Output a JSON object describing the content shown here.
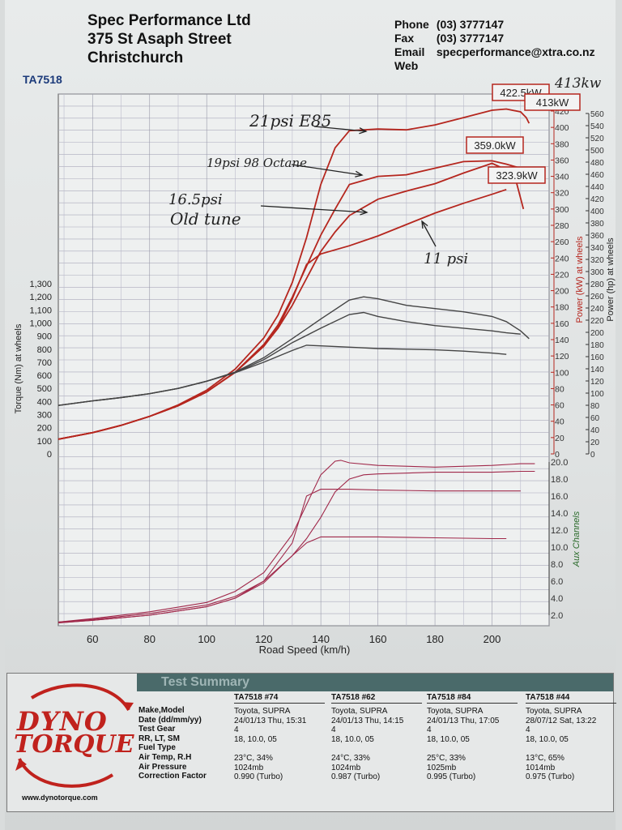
{
  "header": {
    "company_lines": [
      "Spec Performance Ltd",
      "375 St  Asaph Street",
      "Christchurch"
    ],
    "contact": [
      {
        "k": "Phone",
        "v": "(03) 3777147"
      },
      {
        "k": "Fax",
        "v": "(03) 3777147"
      },
      {
        "k": "Email",
        "v": "specperformance@xtra.co.nz"
      },
      {
        "k": "Web",
        "v": ""
      }
    ],
    "run_id": "TA7518"
  },
  "chart_data": [
    {
      "type": "line",
      "title": "",
      "xlabel": "Road Speed (km/h)",
      "xlim": [
        48,
        220
      ],
      "x_ticks": [
        60,
        80,
        100,
        120,
        140,
        160,
        180,
        200
      ],
      "grid": true,
      "axes": {
        "torque": {
          "label": "Torque (Nm) at wheels",
          "side": "left",
          "lim": [
            0,
            1380
          ],
          "ticks": [
            0,
            100,
            200,
            300,
            400,
            500,
            600,
            700,
            800,
            900,
            "1,000",
            "1,100",
            "1,200",
            "1,300"
          ]
        },
        "power_kw": {
          "label": "Power (kW) at wheels",
          "side": "right",
          "lim": [
            0,
            440
          ],
          "ticks": [
            0,
            20,
            40,
            60,
            80,
            100,
            120,
            140,
            160,
            180,
            200,
            220,
            240,
            260,
            280,
            300,
            320,
            340,
            360,
            380,
            400,
            420
          ]
        },
        "power_hp": {
          "label": "Power (hp) at wheels",
          "side": "right-outer",
          "ticks": [
            0,
            20,
            40,
            60,
            80,
            100,
            120,
            140,
            160,
            180,
            200,
            220,
            240,
            260,
            280,
            300,
            320,
            340,
            360,
            380,
            400,
            420,
            440,
            460,
            480,
            500,
            520,
            540,
            560
          ]
        }
      },
      "series": [
        {
          "name": "21psi E85",
          "axis": "power_kw",
          "color": "#b5261e",
          "x": [
            48,
            60,
            70,
            80,
            90,
            100,
            110,
            120,
            125,
            130,
            135,
            140,
            145,
            150,
            160,
            170,
            180,
            190,
            200,
            205,
            210,
            212,
            213
          ],
          "y": [
            18,
            26,
            35,
            46,
            60,
            78,
            104,
            142,
            170,
            210,
            265,
            330,
            375,
            396,
            398,
            397,
            403,
            412,
            421,
            422.5,
            419,
            412,
            405
          ]
        },
        {
          "name": "19psi 98 Octane",
          "axis": "power_kw",
          "color": "#b5261e",
          "x": [
            48,
            60,
            70,
            80,
            90,
            100,
            110,
            120,
            125,
            130,
            135,
            140,
            145,
            150,
            160,
            170,
            180,
            190,
            200,
            205,
            208,
            210
          ],
          "y": [
            18,
            26,
            35,
            46,
            59,
            76,
            100,
            134,
            158,
            192,
            230,
            268,
            300,
            330,
            340,
            342,
            350,
            358,
            359,
            355,
            352,
            350
          ]
        },
        {
          "name": "16.5psi Old tune",
          "axis": "power_kw",
          "color": "#b5261e",
          "x": [
            48,
            60,
            70,
            80,
            90,
            100,
            110,
            120,
            125,
            130,
            135,
            140,
            145,
            150,
            160,
            170,
            180,
            190,
            200,
            205,
            208,
            211
          ],
          "y": [
            18,
            26,
            35,
            46,
            59,
            76,
            100,
            132,
            154,
            182,
            215,
            248,
            272,
            292,
            312,
            322,
            331,
            344,
            356,
            348,
            340,
            300
          ]
        },
        {
          "name": "11 psi",
          "axis": "power_kw",
          "color": "#b5261e",
          "x": [
            48,
            60,
            70,
            80,
            90,
            100,
            110,
            120,
            125,
            130,
            135,
            140,
            150,
            160,
            170,
            180,
            190,
            200,
            205
          ],
          "y": [
            18,
            26,
            35,
            46,
            59,
            76,
            100,
            132,
            155,
            190,
            232,
            245,
            255,
            267,
            281,
            295,
            307,
            318,
            323.9
          ]
        },
        {
          "name": "",
          "axis": "torque",
          "color": "#444",
          "x": [
            48,
            60,
            70,
            80,
            90,
            100,
            110,
            120,
            130,
            140,
            150,
            155,
            160,
            170,
            180,
            190,
            200,
            205,
            210,
            213
          ],
          "y": [
            370,
            405,
            430,
            460,
            500,
            555,
            625,
            735,
            880,
            1030,
            1175,
            1200,
            1185,
            1135,
            1110,
            1085,
            1050,
            1010,
            940,
            880
          ]
        },
        {
          "name": "",
          "axis": "torque",
          "color": "#444",
          "x": [
            48,
            60,
            70,
            80,
            90,
            100,
            110,
            120,
            130,
            140,
            150,
            155,
            160,
            170,
            180,
            190,
            200,
            205,
            210
          ],
          "y": [
            370,
            405,
            430,
            460,
            500,
            555,
            620,
            720,
            850,
            960,
            1065,
            1080,
            1050,
            1010,
            980,
            960,
            940,
            925,
            915
          ]
        },
        {
          "name": "",
          "axis": "torque",
          "color": "#444",
          "x": [
            48,
            60,
            70,
            80,
            90,
            100,
            110,
            120,
            130,
            135,
            140,
            150,
            160,
            170,
            180,
            190,
            200,
            205
          ],
          "y": [
            370,
            405,
            430,
            460,
            500,
            555,
            620,
            700,
            790,
            830,
            825,
            815,
            805,
            800,
            795,
            785,
            770,
            760
          ]
        }
      ],
      "annotations": [
        {
          "text": "422.5kW",
          "color": "#b5261e"
        },
        {
          "text": "413kW",
          "color": "#b5261e"
        },
        {
          "text": "359.0kW",
          "color": "#b5261e"
        },
        {
          "text": "323.9kW",
          "color": "#b5261e"
        },
        {
          "text": "413kw",
          "color": "#222"
        },
        {
          "text": "21psi E85",
          "color": "#222"
        },
        {
          "text": "19psi  98 Octane",
          "color": "#222"
        },
        {
          "text": "16.5psi",
          "color": "#222"
        },
        {
          "text": "Old tune",
          "color": "#222"
        },
        {
          "text": "11 psi",
          "color": "#222"
        }
      ]
    },
    {
      "type": "line",
      "xlabel": "Road Speed (km/h)",
      "ylabel": "Aux Channels",
      "ylim": [
        1.0,
        20.5
      ],
      "y_ticks": [
        "2.0",
        "4.0",
        "6.0",
        "8.0",
        "10.0",
        "12.0",
        "14.0",
        "16.0",
        "18.0",
        "20.0"
      ],
      "series": [
        {
          "name": "",
          "color": "#a0284a",
          "x": [
            48,
            60,
            80,
            100,
            110,
            120,
            130,
            135,
            140,
            145,
            147,
            150,
            160,
            180,
            200,
            210,
            215
          ],
          "y": [
            1.2,
            1.6,
            2.4,
            3.5,
            4.8,
            7.0,
            11.5,
            15.0,
            18.5,
            20.1,
            20.2,
            19.9,
            19.6,
            19.4,
            19.6,
            19.8,
            19.8
          ]
        },
        {
          "name": "",
          "color": "#a0284a",
          "x": [
            48,
            60,
            80,
            100,
            110,
            120,
            130,
            135,
            140,
            145,
            150,
            155,
            160,
            180,
            200,
            210,
            215
          ],
          "y": [
            1.2,
            1.5,
            2.2,
            3.2,
            4.2,
            6.0,
            9.0,
            11.0,
            13.5,
            16.5,
            18.0,
            18.5,
            18.6,
            18.8,
            18.8,
            18.9,
            18.9
          ]
        },
        {
          "name": "",
          "color": "#a0284a",
          "x": [
            48,
            60,
            80,
            100,
            110,
            120,
            130,
            135,
            140,
            150,
            160,
            180,
            200,
            210
          ],
          "y": [
            1.1,
            1.4,
            2.0,
            3.0,
            4.0,
            6.0,
            10.5,
            16.0,
            16.8,
            16.8,
            16.7,
            16.6,
            16.6,
            16.6
          ]
        },
        {
          "name": "",
          "color": "#a0284a",
          "x": [
            48,
            60,
            80,
            100,
            110,
            120,
            130,
            135,
            140,
            150,
            160,
            180,
            200,
            205
          ],
          "y": [
            1.1,
            1.4,
            2.0,
            3.0,
            4.0,
            5.8,
            9.0,
            10.5,
            11.2,
            11.2,
            11.2,
            11.1,
            11.0,
            11.0
          ]
        }
      ]
    }
  ],
  "summary": {
    "title": "Test Summary",
    "logo": {
      "line1": "DYNO",
      "line2": "TORQUE",
      "url": "www.dynotorque.com"
    },
    "row_labels": [
      "Make,Model",
      "Date (dd/mm/yy)",
      "Test Gear",
      "RR, LT, SM",
      "Fuel Type",
      "Air Temp, R.H",
      "Air Pressure",
      "Correction Factor"
    ],
    "columns": [
      {
        "header": "TA7518  #74",
        "values": [
          "Toyota, SUPRA",
          "24/01/13 Thu, 15:31",
          "4",
          "18,    10.0,    05",
          "",
          "23°C,      34%",
          "1024mb",
          "0.990 (Turbo)"
        ]
      },
      {
        "header": "TA7518  #62",
        "values": [
          "Toyota, SUPRA",
          "24/01/13 Thu, 14:15",
          "4",
          "18,    10.0,    05",
          "",
          "24°C,      33%",
          "1024mb",
          "0.987 (Turbo)"
        ]
      },
      {
        "header": "TA7518  #84",
        "values": [
          "Toyota, SUPRA",
          "24/01/13 Thu, 17:05",
          "4",
          "18,    10.0,    05",
          "",
          "25°C,      33%",
          "1025mb",
          "0.995 (Turbo)"
        ]
      },
      {
        "header": "TA7518  #44",
        "values": [
          "Toyota, SUPRA",
          "28/07/12 Sat, 13:22",
          "4",
          "18,    10.0,    05",
          "",
          "13°C,      65%",
          "1014mb",
          "0.975 (Turbo)"
        ]
      }
    ]
  }
}
